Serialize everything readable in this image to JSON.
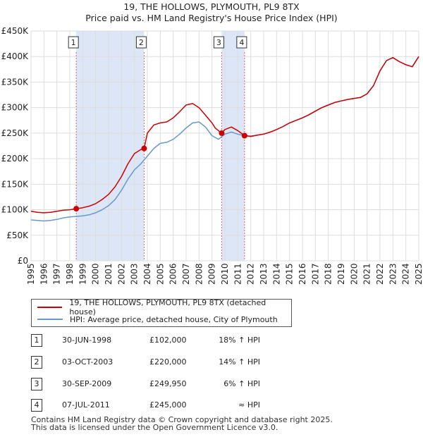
{
  "header": {
    "title": "19, THE HOLLOWS, PLYMOUTH, PL9 8TX",
    "subtitle": "Price paid vs. HM Land Registry's House Price Index (HPI)"
  },
  "legend": {
    "red_label": "19, THE HOLLOWS, PLYMOUTH, PL9 8TX (detached house)",
    "blue_label": "HPI: Average price, detached house, City of Plymouth"
  },
  "sales": [
    {
      "num": "1",
      "date": "30-JUN-1998",
      "price": "£102,000",
      "delta": "18% ↑ HPI"
    },
    {
      "num": "2",
      "date": "03-OCT-2003",
      "price": "£220,000",
      "delta": "14% ↑ HPI"
    },
    {
      "num": "3",
      "date": "30-SEP-2009",
      "price": "£249,950",
      "delta": "6% ↑ HPI"
    },
    {
      "num": "4",
      "date": "07-JUL-2011",
      "price": "£245,000",
      "delta": "≈ HPI"
    }
  ],
  "footer": {
    "line1": "Contains HM Land Registry data © Crown copyright and database right 2025.",
    "line2": "This data is licensed under the Open Government Licence v3.0."
  },
  "colors": {
    "red": "#cc0000",
    "blue": "#6699cc",
    "band": "#dde6f7",
    "grid": "#dddddd"
  },
  "chart_data": {
    "type": "line",
    "title": "19, THE HOLLOWS, PLYMOUTH, PL9 8TX",
    "subtitle": "Price paid vs. HM Land Registry's House Price Index (HPI)",
    "xlim": [
      1995,
      2025
    ],
    "ylim": [
      0,
      450000
    ],
    "y_ticks": [
      0,
      50000,
      100000,
      150000,
      200000,
      250000,
      300000,
      350000,
      400000,
      450000
    ],
    "y_tick_labels": [
      "£0",
      "£50K",
      "£100K",
      "£150K",
      "£200K",
      "£250K",
      "£300K",
      "£350K",
      "£400K",
      "£450K"
    ],
    "x_ticks": [
      "1995",
      "1996",
      "1997",
      "1998",
      "1999",
      "2000",
      "2001",
      "2002",
      "2003",
      "2004",
      "2005",
      "2006",
      "2007",
      "2008",
      "2009",
      "2010",
      "2011",
      "2012",
      "2013",
      "2014",
      "2015",
      "2016",
      "2017",
      "2018",
      "2019",
      "2020",
      "2021",
      "2022",
      "2023",
      "2024",
      "2025"
    ],
    "shaded_ranges": [
      [
        1998.5,
        2003.75
      ],
      [
        2009.75,
        2011.52
      ]
    ],
    "markers": [
      {
        "label": "1",
        "x": 1998.5,
        "y": 102000
      },
      {
        "label": "2",
        "x": 2003.75,
        "y": 220000
      },
      {
        "label": "3",
        "x": 2009.75,
        "y": 249950
      },
      {
        "label": "4",
        "x": 2011.52,
        "y": 245000
      }
    ],
    "series": [
      {
        "name": "19, THE HOLLOWS, PLYMOUTH, PL9 8TX (detached house)",
        "color": "#cc0000",
        "x": [
          1995,
          1995.5,
          1996,
          1996.5,
          1997,
          1997.5,
          1998,
          1998.5,
          1999,
          1999.5,
          2000,
          2000.5,
          2001,
          2001.5,
          2002,
          2002.5,
          2003,
          2003.5,
          2003.75,
          2004,
          2004.5,
          2005,
          2005.5,
          2006,
          2006.5,
          2007,
          2007.5,
          2008,
          2008.5,
          2009,
          2009.25,
          2009.5,
          2009.75,
          2010,
          2010.5,
          2011,
          2011.52,
          2012,
          2012.5,
          2013,
          2013.5,
          2014,
          2014.5,
          2015,
          2015.5,
          2016,
          2016.5,
          2017,
          2017.5,
          2018,
          2018.5,
          2019,
          2019.5,
          2020,
          2020.5,
          2021,
          2021.5,
          2022,
          2022.5,
          2023,
          2023.5,
          2024,
          2024.5,
          2025
        ],
        "y": [
          97000,
          95000,
          94000,
          95000,
          97000,
          99000,
          100000,
          102000,
          104000,
          107000,
          112000,
          120000,
          130000,
          145000,
          165000,
          190000,
          210000,
          218000,
          220000,
          250000,
          266000,
          270000,
          272000,
          280000,
          292000,
          305000,
          308000,
          300000,
          285000,
          270000,
          260000,
          255000,
          249950,
          257000,
          262000,
          255000,
          245000,
          244000,
          246000,
          248000,
          252000,
          257000,
          263000,
          270000,
          275000,
          280000,
          286000,
          293000,
          300000,
          305000,
          310000,
          313000,
          316000,
          318000,
          320000,
          327000,
          343000,
          372000,
          392000,
          398000,
          390000,
          384000,
          380000,
          400000
        ]
      },
      {
        "name": "HPI: Average price, detached house, City of Plymouth",
        "color": "#6699cc",
        "x": [
          1995,
          1995.5,
          1996,
          1996.5,
          1997,
          1997.5,
          1998,
          1998.5,
          1999,
          1999.5,
          2000,
          2000.5,
          2001,
          2001.5,
          2002,
          2002.5,
          2003,
          2003.5,
          2004,
          2004.5,
          2005,
          2005.5,
          2006,
          2006.5,
          2007,
          2007.5,
          2008,
          2008.5,
          2009,
          2009.5,
          2010,
          2010.5,
          2011,
          2011.5,
          2012,
          2012.5,
          2013,
          2013.5,
          2014,
          2014.5,
          2015,
          2015.5,
          2016,
          2016.5,
          2017,
          2017.5,
          2018,
          2018.5,
          2019,
          2019.5,
          2020,
          2020.5,
          2021,
          2021.5,
          2022,
          2022.5,
          2023,
          2023.5,
          2024,
          2024.5,
          2025
        ],
        "y": [
          80000,
          79000,
          78000,
          79000,
          81000,
          84000,
          86000,
          87000,
          88000,
          90000,
          94000,
          100000,
          108000,
          120000,
          138000,
          160000,
          178000,
          190000,
          205000,
          220000,
          230000,
          232000,
          238000,
          248000,
          260000,
          270000,
          272000,
          262000,
          245000,
          238000,
          248000,
          252000,
          248000,
          245000,
          243000,
          246000,
          248000,
          252000,
          257000,
          263000,
          270000,
          275000,
          280000,
          286000,
          293000,
          300000,
          305000,
          310000,
          313000,
          316000,
          318000,
          320000,
          327000,
          343000,
          372000,
          392000,
          398000,
          390000,
          384000,
          380000,
          400000
        ]
      }
    ]
  }
}
